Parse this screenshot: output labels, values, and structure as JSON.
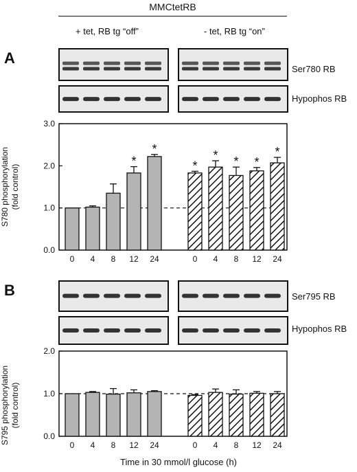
{
  "header": {
    "title": "MMCtetRB",
    "condition_off": "+ tet, RB tg “off”",
    "condition_on": "- tet, RB tg “on”"
  },
  "panels": [
    {
      "letter": "A",
      "blot_labels": [
        "Ser780 RB",
        "Hypophos RB"
      ],
      "ylabel_line1": "S780 phosphorylation",
      "ylabel_line2": "(fold control)"
    },
    {
      "letter": "B",
      "blot_labels": [
        "Ser795 RB",
        "Hypophos RB"
      ],
      "ylabel_line1": "S795 phosphorylation",
      "ylabel_line2": "(fold control)"
    }
  ],
  "xlabel": "Time in 30 mmol/l glucose (h)",
  "colors": {
    "solid_bar": "#b4b4b4",
    "hatch_fill": "#ffffff",
    "ink": "#111111"
  },
  "chart_data": [
    {
      "type": "bar",
      "panel": "A",
      "categories": [
        "0",
        "4",
        "8",
        "12",
        "24"
      ],
      "ylim": [
        0.0,
        3.0
      ],
      "yticks": [
        "0.0",
        "1.0",
        "2.0",
        "3.0"
      ],
      "reference_line": 1.0,
      "series": [
        {
          "style": "solid-grey",
          "values": [
            1.0,
            1.02,
            1.35,
            1.83,
            2.22
          ],
          "errors": [
            0.0,
            0.03,
            0.22,
            0.15,
            0.05
          ],
          "significant": [
            false,
            false,
            false,
            true,
            true
          ]
        },
        {
          "style": "hatched",
          "values": [
            1.83,
            1.97,
            1.77,
            1.88,
            2.07
          ],
          "errors": [
            0.04,
            0.15,
            0.2,
            0.08,
            0.13
          ],
          "significant": [
            true,
            true,
            true,
            true,
            true
          ]
        }
      ]
    },
    {
      "type": "bar",
      "panel": "B",
      "categories": [
        "0",
        "4",
        "8",
        "12",
        "24"
      ],
      "ylim": [
        0.0,
        2.0
      ],
      "yticks": [
        "0.0",
        "1.0",
        "2.0"
      ],
      "reference_line": 1.0,
      "series": [
        {
          "style": "solid-grey",
          "values": [
            1.0,
            1.03,
            0.99,
            1.02,
            1.05
          ],
          "errors": [
            0.0,
            0.02,
            0.13,
            0.07,
            0.02
          ],
          "significant": [
            false,
            false,
            false,
            false,
            false
          ]
        },
        {
          "style": "hatched",
          "values": [
            0.96,
            1.03,
            0.99,
            1.01,
            1.0
          ],
          "errors": [
            0.02,
            0.08,
            0.1,
            0.04,
            0.05
          ],
          "significant": [
            false,
            false,
            false,
            false,
            false
          ]
        }
      ]
    }
  ]
}
